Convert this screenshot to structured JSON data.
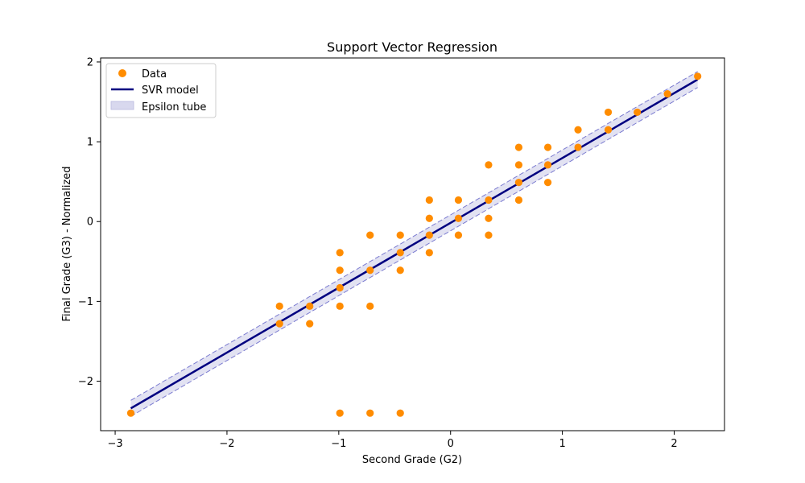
{
  "chart_data": {
    "type": "scatter",
    "title": "Support Vector Regression",
    "xlabel": "Second Grade (G2)",
    "ylabel": "Final Grade (G3) - Normalized",
    "xlim": [
      -3.13,
      2.45
    ],
    "ylim": [
      -2.62,
      2.05
    ],
    "xticks": [
      -3,
      -2,
      -1,
      0,
      1,
      2
    ],
    "yticks": [
      -2,
      -1,
      0,
      1,
      2
    ],
    "xtick_labels": [
      "−3",
      "−2",
      "−1",
      "0",
      "1",
      "2"
    ],
    "ytick_labels": [
      "−2",
      "−1",
      "0",
      "1",
      "2"
    ],
    "grid": false,
    "legend": {
      "placement": "top-left",
      "entries": [
        "Data",
        "SVR model",
        "Epsilon tube"
      ]
    },
    "colors": {
      "data": "#ff8c00",
      "model": "#000080",
      "tube_fill": "#d8d8ee",
      "tube_edge": "#7b7bd0"
    },
    "series": [
      {
        "name": "Data",
        "kind": "scatter",
        "points": [
          [
            -2.86,
            -2.4
          ],
          [
            -1.53,
            -1.06
          ],
          [
            -1.53,
            -1.28
          ],
          [
            -1.26,
            -1.06
          ],
          [
            -1.26,
            -1.28
          ],
          [
            -0.99,
            -0.39
          ],
          [
            -0.99,
            -0.61
          ],
          [
            -0.99,
            -0.83
          ],
          [
            -0.99,
            -1.06
          ],
          [
            -0.99,
            -2.4
          ],
          [
            -0.72,
            -0.17
          ],
          [
            -0.72,
            -0.61
          ],
          [
            -0.72,
            -1.06
          ],
          [
            -0.72,
            -2.4
          ],
          [
            -0.45,
            -0.17
          ],
          [
            -0.45,
            -0.39
          ],
          [
            -0.45,
            -0.61
          ],
          [
            -0.45,
            -2.4
          ],
          [
            -0.19,
            0.27
          ],
          [
            -0.19,
            0.04
          ],
          [
            -0.19,
            -0.17
          ],
          [
            -0.19,
            -0.39
          ],
          [
            0.07,
            0.27
          ],
          [
            0.07,
            0.04
          ],
          [
            0.07,
            -0.17
          ],
          [
            0.34,
            0.71
          ],
          [
            0.34,
            0.27
          ],
          [
            0.34,
            0.04
          ],
          [
            0.34,
            -0.17
          ],
          [
            0.61,
            0.93
          ],
          [
            0.61,
            0.71
          ],
          [
            0.61,
            0.49
          ],
          [
            0.61,
            0.27
          ],
          [
            0.87,
            0.93
          ],
          [
            0.87,
            0.71
          ],
          [
            0.87,
            0.49
          ],
          [
            1.14,
            1.15
          ],
          [
            1.14,
            0.93
          ],
          [
            1.41,
            1.37
          ],
          [
            1.41,
            1.15
          ],
          [
            1.67,
            1.37
          ],
          [
            1.94,
            1.6
          ],
          [
            2.21,
            1.82
          ]
        ]
      },
      {
        "name": "SVR model",
        "kind": "line",
        "points": [
          [
            -2.86,
            -2.34
          ],
          [
            2.21,
            1.78
          ]
        ]
      },
      {
        "name": "Epsilon tube",
        "kind": "band",
        "epsilon": 0.1
      }
    ]
  }
}
